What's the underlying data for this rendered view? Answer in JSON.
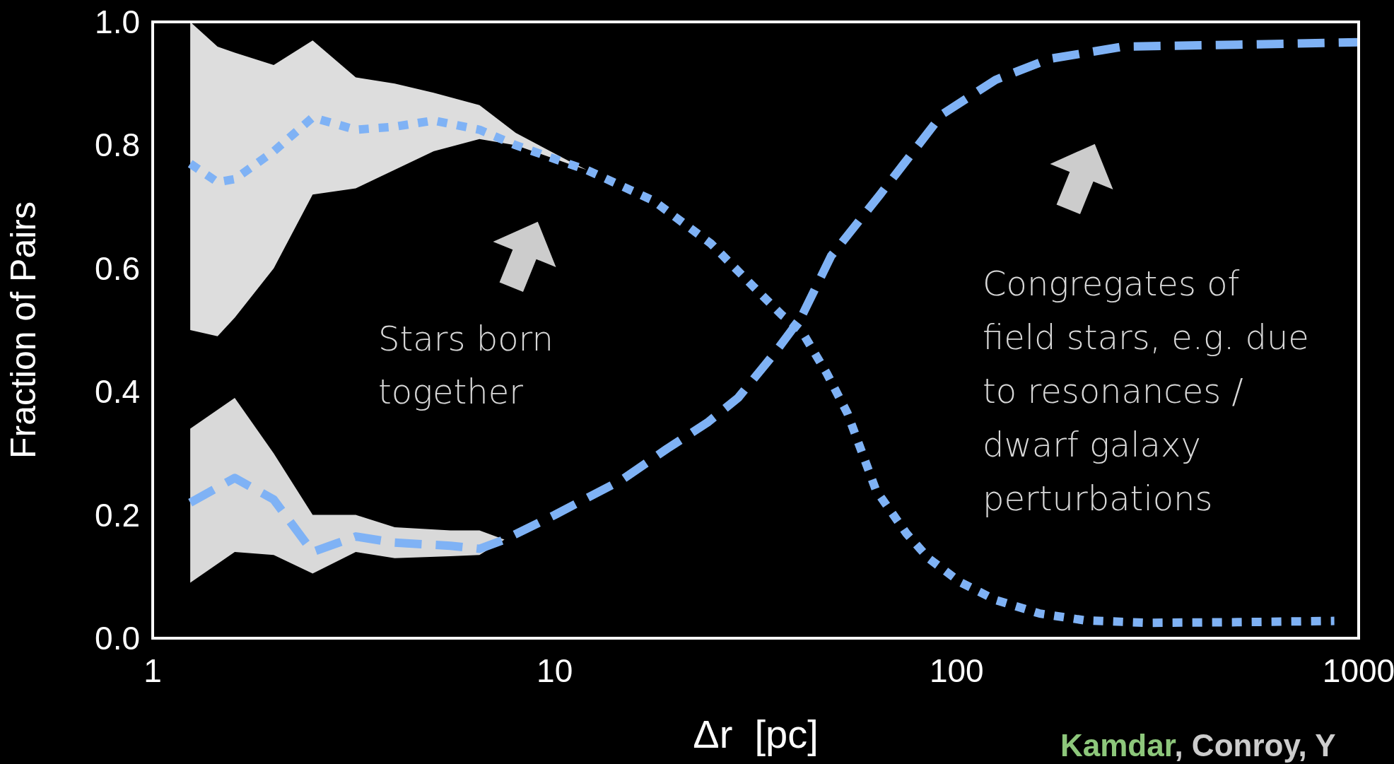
{
  "chart_data": {
    "type": "line",
    "xlabel": "Δr  [pc]",
    "ylabel": "Fraction of Pairs",
    "log": "x",
    "grid": false,
    "xlim": [
      1,
      1000
    ],
    "xticks": [
      1,
      10,
      100,
      1000
    ],
    "ylim": [
      0,
      1
    ],
    "yticks": [
      {
        "value": 0,
        "label": "0.0"
      },
      {
        "value": 0.2,
        "label": "0.2"
      },
      {
        "value": 0.4,
        "label": "0.4"
      },
      {
        "value": 0.6,
        "label": "0.6"
      },
      {
        "value": 0.8,
        "label": "0.8"
      },
      {
        "value": 1,
        "label": "1.0"
      }
    ],
    "series": [
      {
        "color": "#7fb2f5",
        "line_style": "dotted",
        "x": [
          1.24,
          1.45,
          1.6,
          2,
          2.5,
          3.2,
          4,
          5,
          6.5,
          8,
          10.8,
          12,
          17.6,
          24.5,
          31.6,
          36.8,
          41,
          47.5,
          53.5,
          63,
          75,
          85,
          102,
          125,
          161,
          208,
          297,
          500,
          870
        ],
        "values": [
          0.77,
          0.74,
          0.745,
          0.79,
          0.845,
          0.825,
          0.83,
          0.84,
          0.825,
          0.8,
          0.77,
          0.76,
          0.71,
          0.64,
          0.567,
          0.524,
          0.5,
          0.43,
          0.365,
          0.24,
          0.17,
          0.13,
          0.091,
          0.062,
          0.04,
          0.029,
          0.025,
          0.026,
          0.028
        ],
        "upper": [
          1.0,
          0.96,
          0.95,
          0.93,
          0.97,
          0.91,
          0.9,
          0.885,
          0.865,
          0.82,
          0.775,
          0.76,
          null,
          null,
          null,
          null,
          null,
          null,
          null,
          null,
          null,
          null,
          null,
          null,
          null,
          null,
          null,
          null,
          null
        ],
        "lower": [
          0.5,
          0.49,
          0.52,
          0.6,
          0.72,
          0.73,
          0.76,
          0.79,
          0.81,
          0.8,
          0.77,
          0.76,
          null,
          null,
          null,
          null,
          null,
          null,
          null,
          null,
          null,
          null,
          null,
          null,
          null,
          null,
          null,
          null,
          null
        ]
      },
      {
        "color": "#7fb2f5",
        "line_style": "dashed",
        "x": [
          1.24,
          1.6,
          2,
          2.5,
          3.2,
          4,
          5.5,
          6.5,
          7.5,
          10,
          14.7,
          19,
          24,
          28.6,
          35,
          41,
          48.7,
          64.5,
          92,
          125,
          170,
          260,
          500,
          1000
        ],
        "values": [
          0.22,
          0.26,
          0.225,
          0.14,
          0.165,
          0.155,
          0.15,
          0.145,
          0.16,
          0.2,
          0.257,
          0.307,
          0.35,
          0.39,
          0.46,
          0.52,
          0.62,
          0.72,
          0.85,
          0.906,
          0.94,
          0.96,
          0.963,
          0.967
        ],
        "upper": [
          0.34,
          0.39,
          0.3,
          0.2,
          0.2,
          0.18,
          0.175,
          0.175,
          0.16,
          null,
          null,
          null,
          null,
          null,
          null,
          null,
          null,
          null,
          null,
          null,
          null,
          null,
          null,
          null
        ],
        "lower": [
          0.09,
          0.14,
          0.135,
          0.105,
          0.14,
          0.13,
          0.133,
          0.135,
          0.16,
          null,
          null,
          null,
          null,
          null,
          null,
          null,
          null,
          null,
          null,
          null,
          null,
          null,
          null,
          null
        ]
      }
    ],
    "annotations": [
      "Stars born\ntogether",
      "Congregates of\nfield stars, e.g. due\nto resonances /\ndwarf galaxy\nperturbations",
      "Kamdar, Conroy, Y"
    ]
  }
}
